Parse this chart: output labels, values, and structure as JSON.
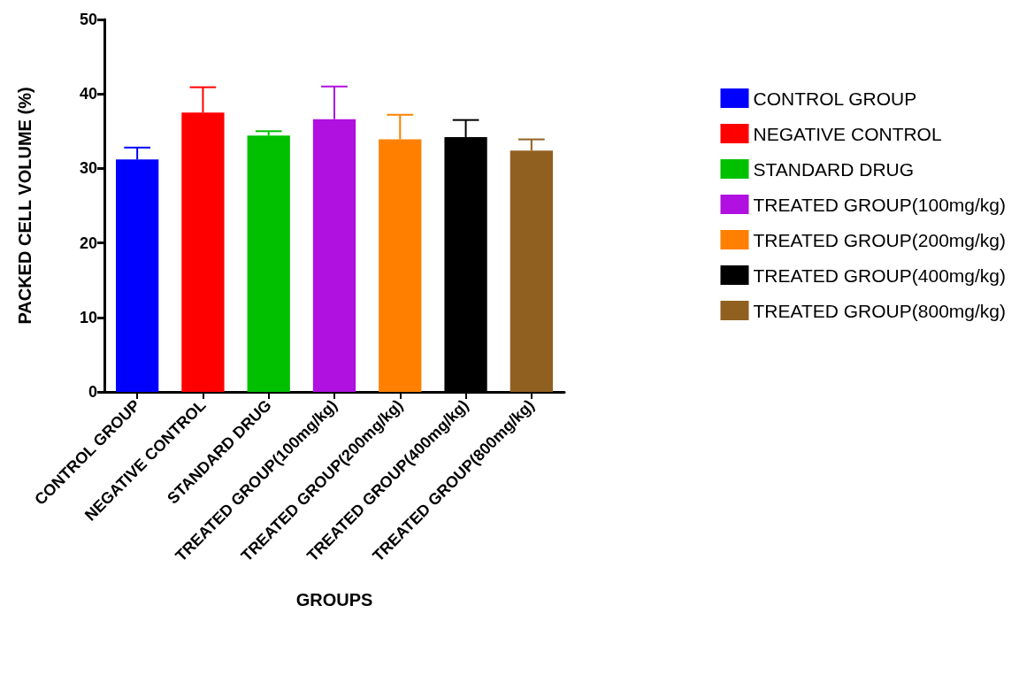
{
  "chart_data": {
    "type": "bar",
    "xlabel": "GROUPS",
    "ylabel": "PACKED CELL VOLUME (%)",
    "stacked": true,
    "categories": [
      "CONTROL GROUP",
      "NEGATIVE CONTROL",
      "STANDARD DRUG",
      "TREATED GROUP(100mg/kg)",
      "TREATED GROUP(200mg/kg)",
      "TREATED GROUP(400mg/kg)",
      "TREATED GROUP(800mg/kg)"
    ],
    "series": [
      {
        "name": "CONTROL GROUP",
        "color": "#0000ff",
        "values": [
          31.2,
          null,
          null,
          null,
          null,
          null,
          null
        ],
        "errors": [
          [
            31.2,
            32.8
          ],
          null,
          null,
          null,
          null,
          null,
          null
        ]
      },
      {
        "name": "NEGATIVE CONTROL",
        "color": "#ff0000",
        "values": [
          null,
          37.5,
          null,
          null,
          null,
          null,
          null
        ],
        "errors": [
          null,
          [
            37.5,
            40.9
          ],
          null,
          null,
          null,
          null,
          null
        ]
      },
      {
        "name": "STANDARD DRUG",
        "color": "#00c000",
        "values": [
          null,
          null,
          34.4,
          null,
          null,
          null,
          null
        ],
        "errors": [
          null,
          null,
          [
            34.4,
            35.0
          ],
          null,
          null,
          null,
          null
        ]
      },
      {
        "name": "TREATED GROUP(100mg/kg)",
        "color": "#b010e0",
        "values": [
          null,
          null,
          null,
          36.6,
          null,
          null,
          null
        ],
        "errors": [
          null,
          null,
          null,
          [
            36.6,
            41.0
          ],
          null,
          null,
          null
        ]
      },
      {
        "name": "TREATED GROUP(200mg/kg)",
        "color": "#ff8000",
        "values": [
          null,
          null,
          null,
          null,
          33.9,
          null,
          null
        ],
        "errors": [
          null,
          null,
          null,
          null,
          [
            33.9,
            37.2
          ],
          null,
          null
        ]
      },
      {
        "name": "TREATED GROUP(400mg/kg)",
        "color": "#000000",
        "values": [
          null,
          null,
          null,
          null,
          null,
          34.2,
          null
        ],
        "errors": [
          null,
          null,
          null,
          null,
          null,
          [
            34.2,
            36.5
          ],
          null
        ]
      },
      {
        "name": "TREATED GROUP(800mg/kg)",
        "color": "#906020",
        "values": [
          null,
          null,
          null,
          null,
          null,
          null,
          32.4
        ],
        "errors": [
          null,
          null,
          null,
          null,
          null,
          null,
          [
            32.4,
            33.9
          ]
        ]
      }
    ],
    "ylim": [
      0,
      50
    ],
    "yticks": [
      0,
      10,
      20,
      30,
      40,
      50
    ],
    "grid": false,
    "legend": "right"
  }
}
